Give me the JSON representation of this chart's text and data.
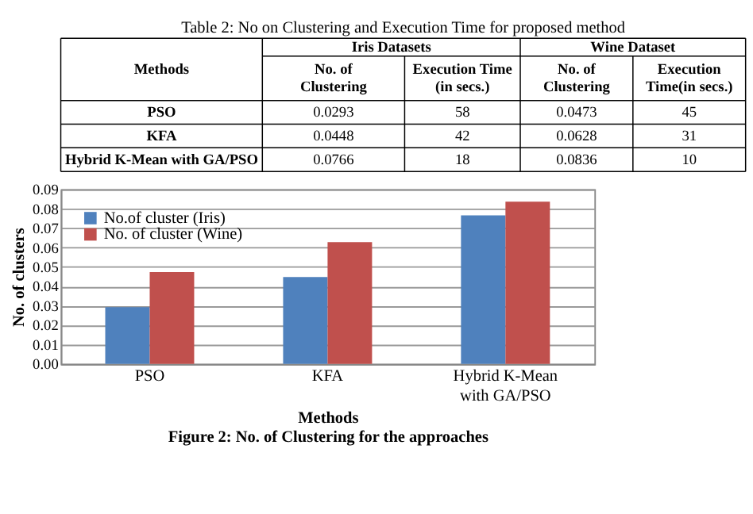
{
  "chart_data": [
    {
      "type": "other",
      "title": "Table 2: No on Clustering and Execution Time for proposed method",
      "annotations": [
        "Methods",
        "Iris Datasets",
        "Wine Dataset",
        "No. of Clustering",
        "Execution Time (in secs.)",
        "No. of Clustering",
        "Execution Time(in secs.)",
        "PSO",
        "0.0293",
        "58",
        "0.0473",
        "45",
        "KFA",
        "0.0448",
        "42",
        "0.0628",
        "31",
        "Hybrid K-Mean with GA/PSO",
        "0.0766",
        "18",
        "0.0836",
        "10"
      ]
    },
    {
      "type": "bar",
      "categories": [
        "PSO",
        "KFA",
        "Hybrid K-Mean with GA/PSO"
      ],
      "series": [
        {
          "name": "No.of cluster (Iris)",
          "color": "#4f81bd",
          "values": [
            0.0293,
            0.0448,
            0.0766
          ]
        },
        {
          "name": "No. of cluster (Wine)",
          "color": "#c0504d",
          "values": [
            0.0473,
            0.0628,
            0.0836
          ]
        }
      ],
      "xlabel": "Methods",
      "ylabel": "No. of clusters",
      "ylim": [
        0,
        0.09
      ],
      "yticks": [
        {
          "value": 0,
          "label": "0.00"
        },
        0.01,
        0.02,
        0.03,
        0.04,
        0.05,
        0.06,
        0.07,
        0.08,
        0.09
      ],
      "grid": "y",
      "legend": "top left",
      "annotations": [
        "Figure 2: No. of Clustering for the approaches"
      ]
    }
  ]
}
